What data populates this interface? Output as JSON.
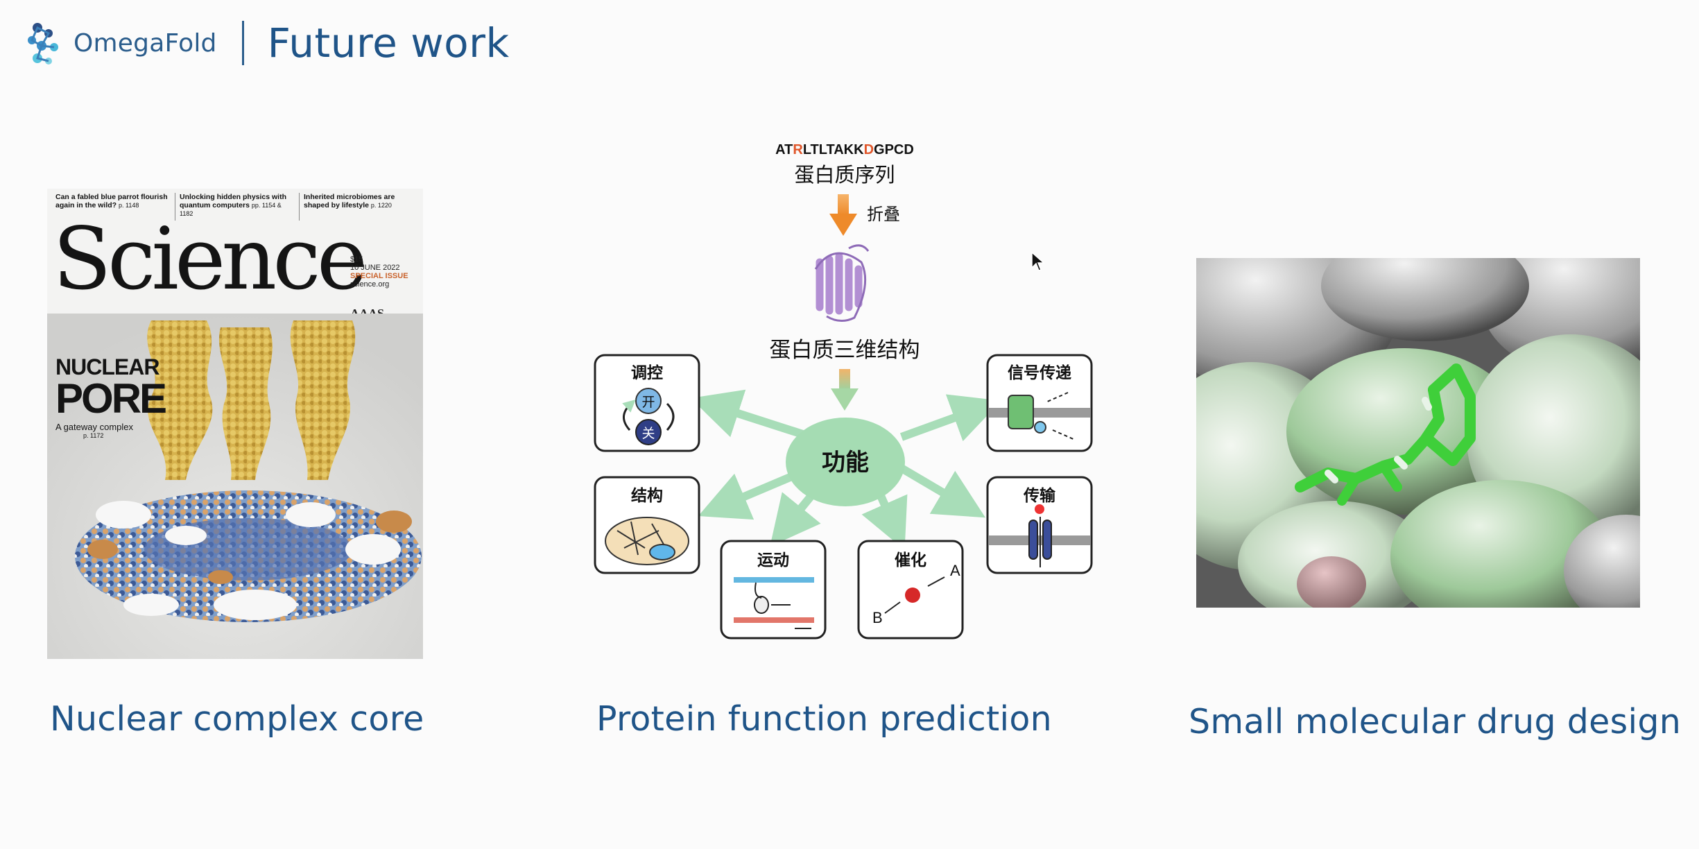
{
  "header": {
    "logo_text": "OmegaFold",
    "title": "Future work"
  },
  "cover": {
    "teasers": [
      {
        "text": "Can a fabled blue parrot flourish again in the wild?",
        "page": "p. 1148"
      },
      {
        "text": "Unlocking hidden physics with quantum computers",
        "page": "pp. 1154 & 1182"
      },
      {
        "text": "Inherited microbiomes are shaped by lifestyle",
        "page": "p. 1220"
      }
    ],
    "masthead": "Science",
    "price": "$15",
    "date": "10 JUNE 2022",
    "special": "SPECIAL ISSUE",
    "site": "science.org",
    "publisher": "AAAS",
    "headline_1": "NUCLEAR",
    "headline_2": "PORE",
    "subhead": "A gateway complex",
    "page": "p. 1172"
  },
  "diagram": {
    "sequence_parts": [
      "AT",
      "R",
      "LTLTAKK",
      "D",
      "GPCD"
    ],
    "sequence_label": "蛋白质序列",
    "fold_label": "折叠",
    "structure_label": "蛋白质三维结构",
    "center_label": "功能",
    "boxes": {
      "regulation": {
        "title": "调控",
        "on": "开",
        "off": "关"
      },
      "signal": {
        "title": "信号传递"
      },
      "structure": {
        "title": "结构"
      },
      "transport": {
        "title": "传输"
      },
      "motion": {
        "title": "运动"
      },
      "catalysis": {
        "title": "催化",
        "a": "A",
        "b": "B"
      }
    }
  },
  "captions": {
    "left": "Nuclear complex core",
    "middle": "Protein function prediction",
    "right": "Small molecular drug design"
  }
}
